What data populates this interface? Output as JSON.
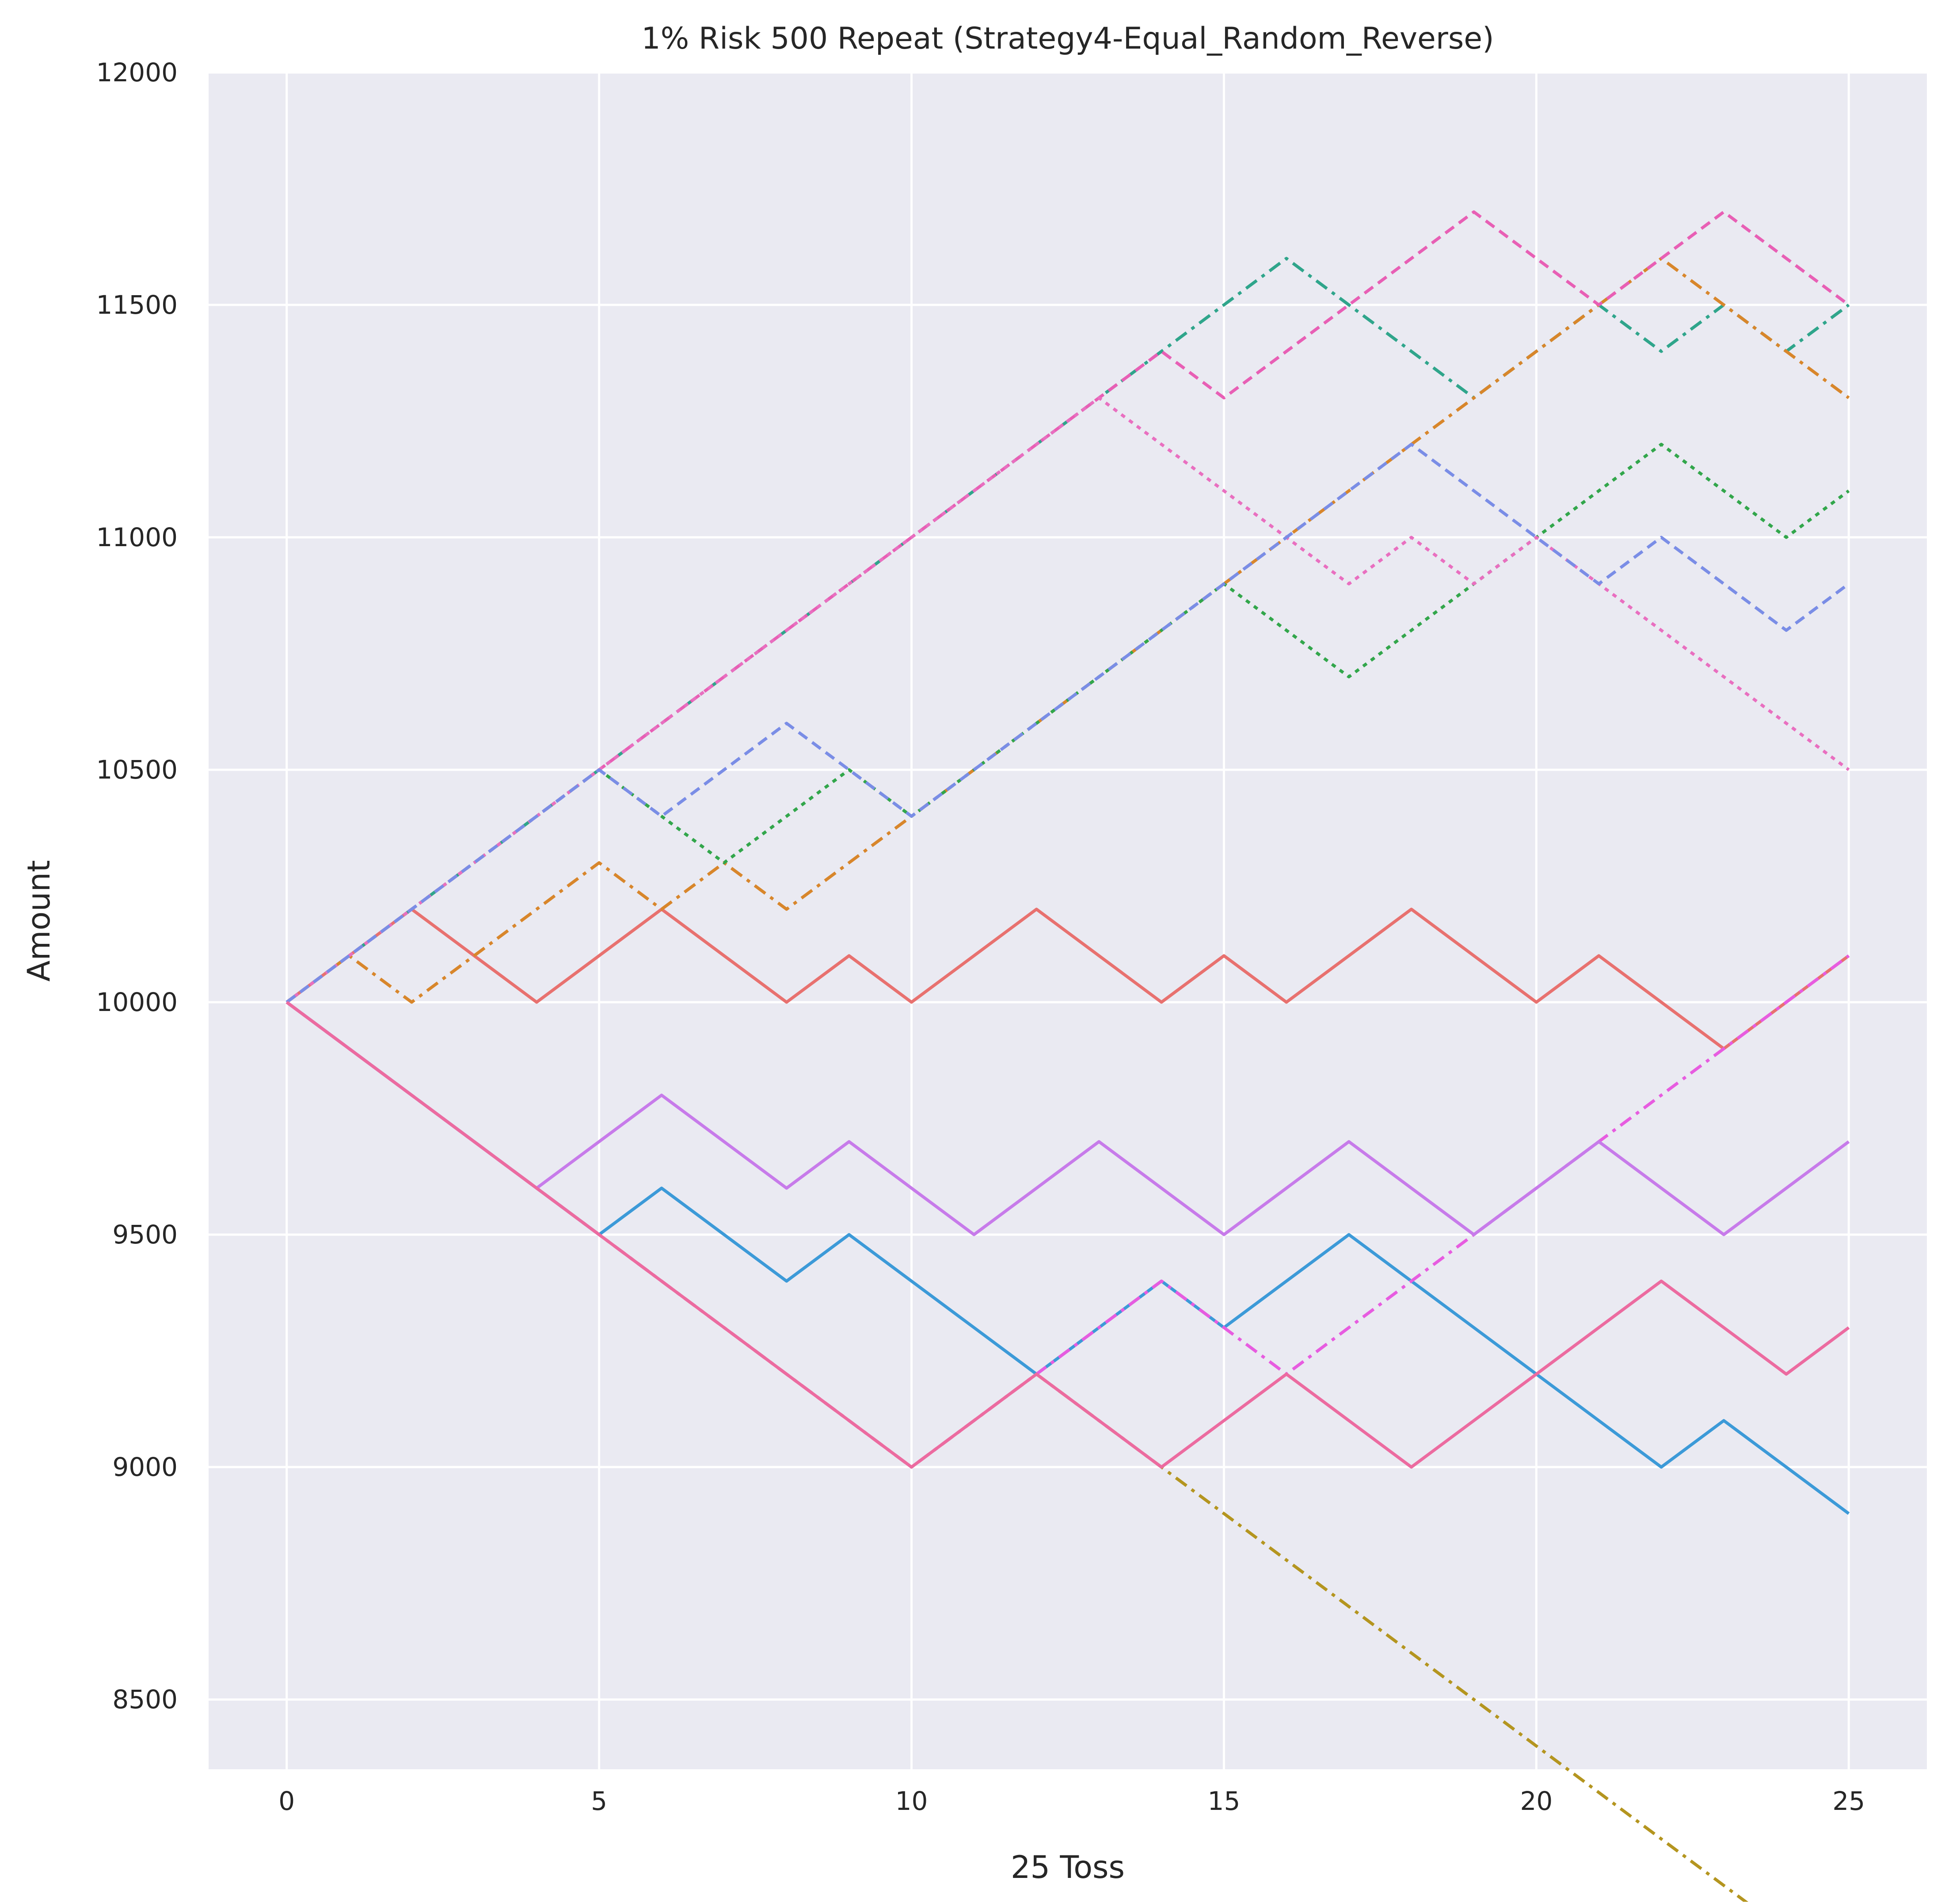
{
  "chart_data": {
    "type": "line",
    "title": "1% Risk 500 Repeat (Strategy4-Equal_Random_Reverse)",
    "xlabel": "25 Toss",
    "ylabel": "Amount",
    "xlim": [
      -1.25,
      26.25
    ],
    "ylim": [
      8350,
      12000
    ],
    "xticks": [
      0,
      5,
      10,
      15,
      20,
      25
    ],
    "yticks": [
      8500,
      9000,
      9500,
      10000,
      10500,
      11000,
      11500,
      12000
    ],
    "x_tick_labels": [
      "0",
      "5",
      "10",
      "15",
      "20",
      "25"
    ],
    "y_tick_labels": [
      "8500",
      "9000",
      "9500",
      "10000",
      "10500",
      "11000",
      "11500",
      "12000"
    ],
    "grid": true,
    "legend": "none",
    "start_amount": 10000,
    "risk_fraction": 0.01,
    "series": [
      {
        "color": "#e8716f",
        "dash": "",
        "moves": "WWLLWWLLWLWWLLWLWWLLWLLWW"
      },
      {
        "color": "#2fa58b",
        "dash": "30,14,8,14",
        "moves": "WWWWWWWWWWWWWWWWLLLWWLWLWL"
      },
      {
        "color": "#d8862b",
        "dash": "30,14,8,14",
        "moves": "WLWWWLWLWWWWWWWWWWWWWWLLLWW"
      },
      {
        "color": "#e85fb5",
        "dash": "24,14",
        "moves": "WWWWWWWWWWWWWWLWWWWLLWWLLW"
      },
      {
        "color": "#32a64b",
        "dash": "10,12",
        "moves": "WWWWWLLWWLWWWWWLLWWWWWLLWL"
      },
      {
        "color": "#3c9ad8",
        "dash": "",
        "moves": "LLLLLWLLWLLLWWLWWLLLLLWLLWLL"
      },
      {
        "color": "#b4951f",
        "dash": "30,14,8,14",
        "moves": "LLLLLLLLLLWWLLLLLLLLLLLLLWW"
      },
      {
        "color": "#e75ce0",
        "dash": "30,14,8,14",
        "moves": "LLLLLLLLLLWWWWLLWWWWWWWWWW"
      },
      {
        "color": "#e96fc0",
        "dash": "10,12",
        "moves": "WWWWWWWWWWWWWLLLLWLWLLLLLLW"
      },
      {
        "color": "#7a8de6",
        "dash": "24,14",
        "moves": "WWWWWLWWLLWWWWWWWWLLLWLLWW"
      },
      {
        "color": "#c77bea",
        "dash": "",
        "moves": "LLLLWWLLWLLWWLLWWLLWWLLWWLL"
      },
      {
        "color": "#ec6ba0",
        "dash": "",
        "moves": "LLLLLLLLLLWWLLWWLLWWWWLLWLL"
      }
    ]
  }
}
